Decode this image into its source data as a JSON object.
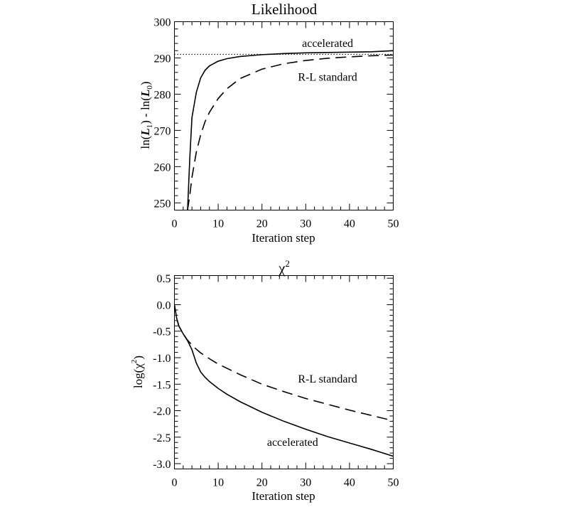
{
  "chart_data": [
    {
      "type": "line",
      "title": "Likelihood",
      "xlabel": "Iteration step",
      "ylabel_parts": [
        "ln(",
        "L",
        "1",
        ") - ln(",
        "L",
        "0",
        ")"
      ],
      "xlim": [
        0,
        50
      ],
      "ylim": [
        248,
        300
      ],
      "xticks": [
        "0",
        "10",
        "20",
        "30",
        "40",
        "50"
      ],
      "yticks": [
        "250",
        "260",
        "270",
        "280",
        "290",
        "300"
      ],
      "reference_line": {
        "y": 291,
        "style": "dotted"
      },
      "series": [
        {
          "name": "accelerated",
          "style": "solid",
          "x": [
            3,
            3.5,
            4,
            5,
            6,
            7,
            8,
            10,
            12,
            15,
            20,
            25,
            30,
            35,
            40,
            45,
            50
          ],
          "y": [
            248,
            262,
            273.5,
            280.5,
            284.5,
            286.6,
            287.8,
            289.1,
            289.8,
            290.4,
            290.9,
            291.2,
            291.4,
            291.5,
            291.6,
            291.7,
            292
          ]
        },
        {
          "name": "R-L standard",
          "style": "dashed",
          "x": [
            3,
            3.5,
            4,
            5,
            6,
            7,
            8,
            10,
            12,
            15,
            20,
            25,
            30,
            35,
            40,
            45,
            50
          ],
          "y": [
            248,
            252,
            257,
            264,
            268.8,
            272.4,
            275,
            278.8,
            281.5,
            284.3,
            286.9,
            288.4,
            289.3,
            289.9,
            290.3,
            290.6,
            290.8
          ]
        }
      ],
      "annotations": [
        {
          "text": "accelerated",
          "x": 35,
          "y": 294
        },
        {
          "text": "R-L standard",
          "x": 35,
          "y": 284.7
        }
      ]
    },
    {
      "type": "line",
      "title_parts": [
        "χ",
        "2"
      ],
      "xlabel": "Iteration step",
      "ylabel_parts": [
        "log(χ",
        "2",
        ")"
      ],
      "xlim": [
        0,
        50
      ],
      "ylim": [
        -3.1,
        0.55
      ],
      "xticks": [
        "0",
        "10",
        "20",
        "30",
        "40",
        "50"
      ],
      "yticks": [
        "0.5",
        "0.0",
        "-0.5",
        "-1.0",
        "-1.5",
        "-2.0",
        "-2.5",
        "-3.0"
      ],
      "series": [
        {
          "name": "accelerated",
          "style": "solid",
          "x": [
            0,
            0.5,
            1,
            2,
            3,
            4,
            5,
            6,
            7,
            8,
            10,
            12,
            15,
            20,
            25,
            30,
            35,
            40,
            45,
            50
          ],
          "y": [
            0,
            -0.25,
            -0.4,
            -0.55,
            -0.68,
            -0.85,
            -1.1,
            -1.27,
            -1.37,
            -1.45,
            -1.58,
            -1.69,
            -1.83,
            -2.03,
            -2.2,
            -2.35,
            -2.49,
            -2.61,
            -2.73,
            -2.86
          ]
        },
        {
          "name": "R-L standard",
          "style": "dashed",
          "x": [
            0,
            0.5,
            1,
            2,
            3,
            4,
            5,
            6,
            8,
            10,
            12,
            15,
            20,
            25,
            30,
            35,
            40,
            45,
            50
          ],
          "y": [
            0,
            -0.25,
            -0.4,
            -0.55,
            -0.67,
            -0.76,
            -0.84,
            -0.91,
            -1.02,
            -1.12,
            -1.2,
            -1.32,
            -1.5,
            -1.64,
            -1.77,
            -1.88,
            -1.99,
            -2.09,
            -2.19
          ]
        }
      ],
      "annotations": [
        {
          "text": "R-L standard",
          "x": 35,
          "y": -1.4
        },
        {
          "text": "accelerated",
          "x": 27,
          "y": -2.6
        }
      ]
    }
  ]
}
